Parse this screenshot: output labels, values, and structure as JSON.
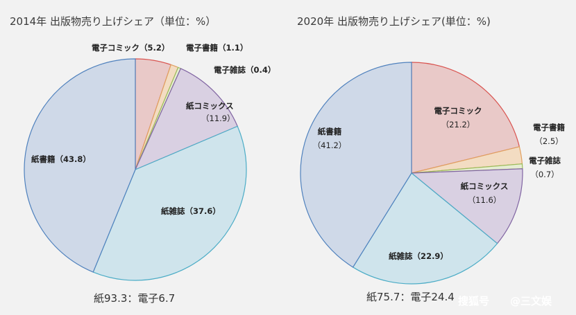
{
  "chart_data": [
    {
      "type": "pie",
      "title": "2014年 出版物売り上げシェア（単位：%）",
      "slices": [
        {
          "name": "電子コミック",
          "value": 5.2,
          "label": "電子コミック（5.2）",
          "color": "#e9c9c8",
          "stroke": "#d9534f"
        },
        {
          "name": "電子書籍",
          "value": 1.1,
          "label": "電子書籍（1.1）",
          "color": "#f3dcc2",
          "stroke": "#e0a060"
        },
        {
          "name": "電子雑誌",
          "value": 0.4,
          "label": "電子雑誌（0.4）",
          "color": "#e6edd2",
          "stroke": "#9bbb59"
        },
        {
          "name": "紙コミックス",
          "value": 11.9,
          "label": "紙コミックス",
          "label2": "（11.9）",
          "color": "#d9d0e2",
          "stroke": "#8064a2"
        },
        {
          "name": "紙雑誌",
          "value": 37.6,
          "label": "紙雑誌（37.6）",
          "color": "#cfe4ec",
          "stroke": "#4bacc6"
        },
        {
          "name": "紙書籍",
          "value": 43.8,
          "label": "紙書籍（43.8）",
          "color": "#cfd9e8",
          "stroke": "#4f81bd"
        }
      ],
      "summary": "紙93.3：電子6.7"
    },
    {
      "type": "pie",
      "title": "2020年 出版物売り上げシェア(単位：%)",
      "slices": [
        {
          "name": "電子コミック",
          "value": 21.2,
          "label": "電子コミック",
          "label2": "（21.2）",
          "color": "#e9c9c8",
          "stroke": "#d9534f"
        },
        {
          "name": "電子書籍",
          "value": 2.5,
          "label": "電子書籍",
          "label2": "（2.5）",
          "color": "#f3dcc2",
          "stroke": "#e0a060"
        },
        {
          "name": "電子雑誌",
          "value": 0.7,
          "label": "電子雑誌",
          "label2": "（0.7）",
          "color": "#e6edd2",
          "stroke": "#9bbb59"
        },
        {
          "name": "紙コミックス",
          "value": 11.6,
          "label": "紙コミックス",
          "label2": "（11.6）",
          "color": "#d9d0e2",
          "stroke": "#8064a2"
        },
        {
          "name": "紙雑誌",
          "value": 22.9,
          "label": "紙雑誌（22.9）",
          "color": "#cfe4ec",
          "stroke": "#4bacc6"
        },
        {
          "name": "紙書籍",
          "value": 41.2,
          "label": "紙書籍",
          "label2": "（41.2）",
          "color": "#cfd9e8",
          "stroke": "#4f81bd"
        }
      ],
      "summary": "紙75.7：電子24.4"
    }
  ],
  "watermark": {
    "brand": "搜狐号",
    "handle": "@三文娱"
  }
}
